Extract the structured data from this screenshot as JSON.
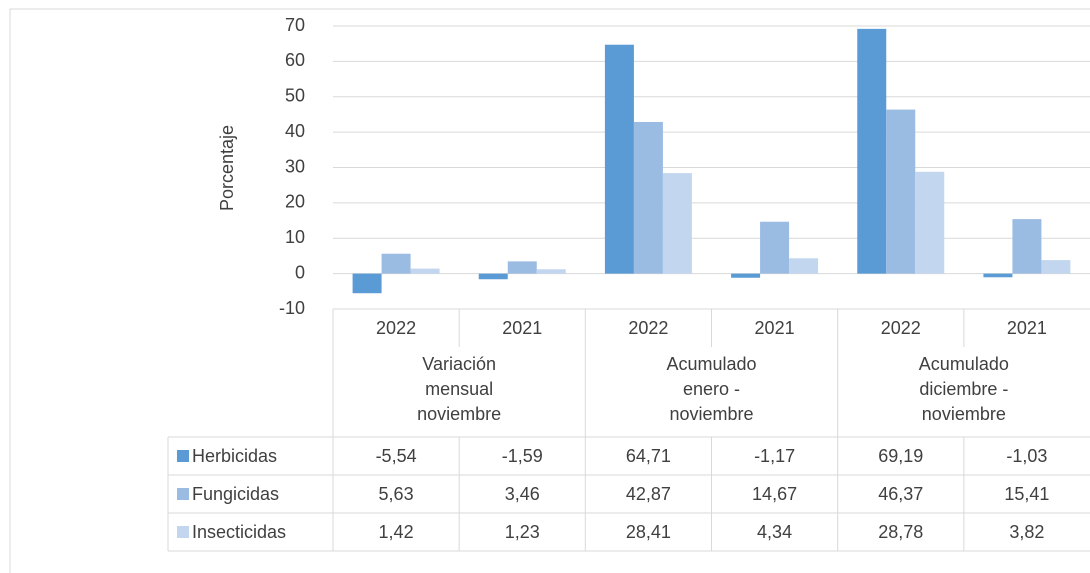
{
  "chart_data": {
    "type": "bar",
    "y_label": "Porcentaje",
    "categories": [
      "2022",
      "2021",
      "2022",
      "2021",
      "2022",
      "2021"
    ],
    "category_groups": [
      "Variación mensual noviembre",
      "Acumulado enero - noviembre",
      "Acumulado diciembre - noviembre"
    ],
    "series": [
      {
        "name": "Herbicidas",
        "color": "#5b9bd5",
        "values": [
          -5.54,
          -1.59,
          64.71,
          -1.17,
          69.19,
          -1.03
        ],
        "value_labels": [
          "-5,54",
          "-1,59",
          "64,71",
          "-1,17",
          "69,19",
          "-1,03"
        ]
      },
      {
        "name": "Fungicidas",
        "color": "#9abbe2",
        "values": [
          5.63,
          3.46,
          42.87,
          14.67,
          46.37,
          15.41
        ],
        "value_labels": [
          "5,63",
          "3,46",
          "42,87",
          "14,67",
          "46,37",
          "15,41"
        ]
      },
      {
        "name": "Insecticidas",
        "color": "#c3d6ef",
        "values": [
          1.42,
          1.23,
          28.41,
          4.34,
          28.78,
          3.82
        ],
        "value_labels": [
          "1,42",
          "1,23",
          "28,41",
          "4,34",
          "28,78",
          "3,82"
        ]
      }
    ],
    "ylim": [
      -10,
      70
    ],
    "yticks": [
      -10,
      0,
      10,
      20,
      30,
      40,
      50,
      60,
      70
    ],
    "grid": true
  }
}
